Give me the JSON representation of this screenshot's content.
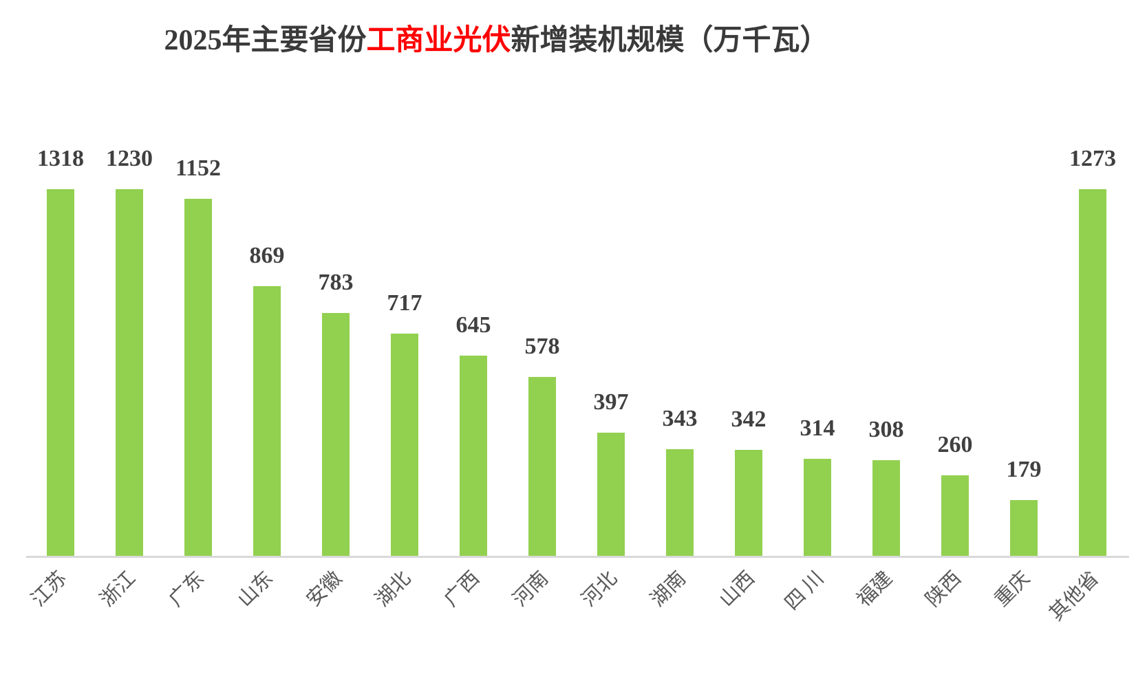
{
  "page": {
    "background_color": "#FFFFFF"
  },
  "title": {
    "prefix": "2025年主要省份",
    "highlight": "工商业光伏",
    "suffix": "新增装机规模（万千瓦）",
    "text_color": "#3A3A3A",
    "highlight_color": "#FF0000"
  },
  "chart_data": {
    "type": "bar",
    "title": "2025年主要省份工商业光伏新增装机规模（万千瓦）",
    "categories": [
      "江苏",
      "浙江",
      "广东",
      "山东",
      "安徽",
      "湖北",
      "广西",
      "河南",
      "河北",
      "湖南",
      "山西",
      "四 川",
      "福建",
      "陕西",
      "重庆",
      "其他省"
    ],
    "values": [
      1318,
      1230,
      1152,
      869,
      783,
      717,
      645,
      578,
      397,
      343,
      342,
      314,
      308,
      260,
      179,
      1273
    ],
    "xlabel": "",
    "ylabel": "",
    "ylim": [
      0,
      1400
    ],
    "grid": false,
    "legend": false,
    "data_labels_position": "above-bars",
    "x_labels_rotation_deg": 45,
    "bar_color": "#92D050",
    "value_label_color": "#404040",
    "axis_label_color": "#595959",
    "axis_line_color": "#D9D9D9"
  }
}
